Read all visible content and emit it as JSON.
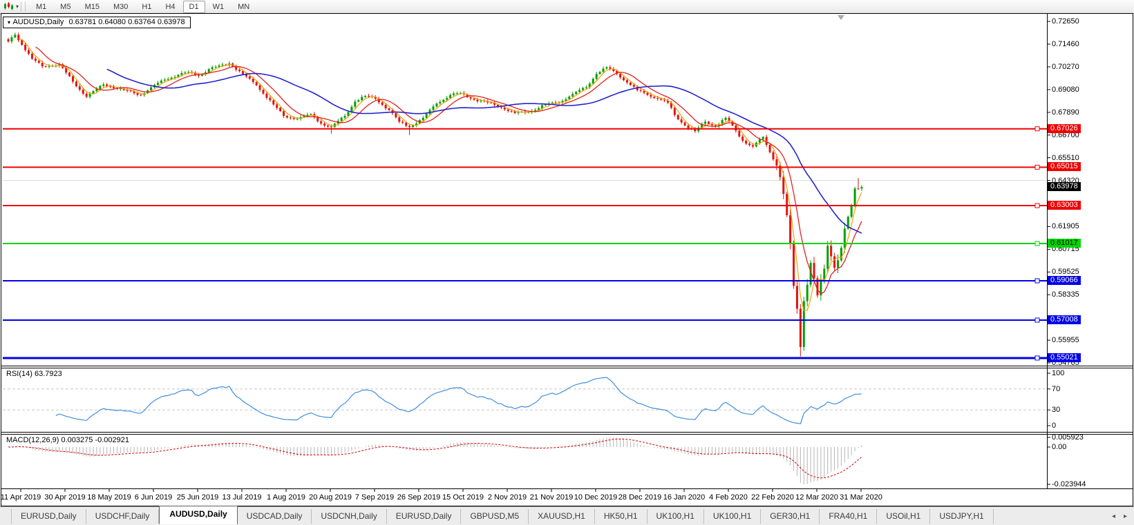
{
  "toolbar": {
    "chart_type_icon": "candlestick-chart-icon",
    "dropdown_icon": "caret-down-icon",
    "timeframes": [
      "M1",
      "M5",
      "M15",
      "M30",
      "H1",
      "H4",
      "D1",
      "W1",
      "MN"
    ],
    "active_timeframe": "D1"
  },
  "chart": {
    "title": {
      "marker": "▾",
      "symbol": "AUDUSD,Daily",
      "ohlc": "0.63781 0.64080 0.63764 0.63978"
    },
    "current_price_label": "0.63978",
    "current_price": 0.63978
  },
  "chart_data": {
    "type": "candlestick",
    "symbol": "AUDUSD",
    "timeframe": "Daily",
    "last_bar_ohlc": {
      "open": "0.63781",
      "high": "0.64080",
      "low": "0.63764",
      "close": "0.63978"
    },
    "ylim": [
      0.54622,
      0.73122
    ],
    "y_ticks": [
      "0.72650",
      "0.71460",
      "0.70270",
      "0.69080",
      "0.67890",
      "0.66700",
      "0.65510",
      "0.64320",
      "0.61905",
      "0.60715",
      "0.59525",
      "0.58335",
      "0.55955",
      "0.54765"
    ],
    "faint_gridline_price": 0.6432,
    "num_candles": 252,
    "close_anchors": [
      [
        0,
        0.716
      ],
      [
        2,
        0.7195
      ],
      [
        7,
        0.707
      ],
      [
        10,
        0.703
      ],
      [
        15,
        0.704
      ],
      [
        19,
        0.695
      ],
      [
        23,
        0.687
      ],
      [
        28,
        0.6935
      ],
      [
        34,
        0.6905
      ],
      [
        39,
        0.688
      ],
      [
        42,
        0.692
      ],
      [
        46,
        0.696
      ],
      [
        50,
        0.6985
      ],
      [
        53,
        0.7
      ],
      [
        56,
        0.698
      ],
      [
        59,
        0.7015
      ],
      [
        65,
        0.7045
      ],
      [
        69,
        0.699
      ],
      [
        73,
        0.693
      ],
      [
        78,
        0.683
      ],
      [
        81,
        0.677
      ],
      [
        85,
        0.6755
      ],
      [
        89,
        0.678
      ],
      [
        92,
        0.673
      ],
      [
        95,
        0.6712
      ],
      [
        99,
        0.677
      ],
      [
        102,
        0.6845
      ],
      [
        105,
        0.6875
      ],
      [
        108,
        0.686
      ],
      [
        112,
        0.68
      ],
      [
        115,
        0.674
      ],
      [
        118,
        0.6712
      ],
      [
        122,
        0.676
      ],
      [
        126,
        0.6835
      ],
      [
        130,
        0.688
      ],
      [
        133,
        0.689
      ],
      [
        137,
        0.6855
      ],
      [
        141,
        0.684
      ],
      [
        145,
        0.6815
      ],
      [
        149,
        0.6785
      ],
      [
        153,
        0.679
      ],
      [
        158,
        0.683
      ],
      [
        162,
        0.684
      ],
      [
        166,
        0.6885
      ],
      [
        170,
        0.692
      ],
      [
        173,
        0.699
      ],
      [
        176,
        0.7025
      ],
      [
        179,
        0.699
      ],
      [
        182,
        0.6945
      ],
      [
        185,
        0.6905
      ],
      [
        188,
        0.688
      ],
      [
        191,
        0.686
      ],
      [
        194,
        0.684
      ],
      [
        196,
        0.6775
      ],
      [
        199,
        0.672
      ],
      [
        202,
        0.669
      ],
      [
        205,
        0.674
      ],
      [
        208,
        0.6715
      ],
      [
        211,
        0.676
      ],
      [
        213,
        0.672
      ],
      [
        216,
        0.664
      ],
      [
        219,
        0.661
      ],
      [
        222,
        0.666
      ],
      [
        224,
        0.658
      ],
      [
        226,
        0.651
      ],
      [
        227,
        0.645
      ],
      [
        229,
        0.625
      ],
      [
        230,
        0.61
      ],
      [
        231,
        0.588
      ],
      [
        232,
        0.576
      ],
      [
        233,
        0.556
      ],
      [
        234,
        0.58
      ],
      [
        236,
        0.6
      ],
      [
        237,
        0.592
      ],
      [
        238,
        0.583
      ],
      [
        240,
        0.597
      ],
      [
        241,
        0.609
      ],
      [
        242,
        0.6035
      ],
      [
        243,
        0.5975
      ],
      [
        245,
        0.608
      ],
      [
        246,
        0.618
      ],
      [
        248,
        0.63
      ],
      [
        249,
        0.639
      ],
      [
        251,
        0.63978
      ]
    ],
    "wick_lows": {
      "95": 0.6677,
      "118": 0.667,
      "233": 0.551,
      "251": 0.63764
    },
    "wick_highs": {
      "2": 0.7206,
      "250": 0.6445,
      "251": 0.6408
    },
    "up_color": "#00A000",
    "down_color": "#E31212",
    "moving_averages": [
      {
        "period": 4,
        "color": "#F2A200",
        "width": 1.2
      },
      {
        "period": 9,
        "color": "#E02020",
        "width": 1.3
      },
      {
        "period": 30,
        "color": "#2323CC",
        "width": 1.6
      }
    ],
    "horizontal_lines": [
      {
        "price": 0.67026,
        "label": "0.67026",
        "color": "#EE0000",
        "text_color": "#FFFFFF",
        "width": 2
      },
      {
        "price": 0.65015,
        "label": "0.65015",
        "color": "#EE0000",
        "text_color": "#FFFFFF",
        "width": 2
      },
      {
        "price": 0.63003,
        "label": "0.63003",
        "color": "#EE0000",
        "text_color": "#FFFFFF",
        "width": 2
      },
      {
        "price": 0.61017,
        "label": "0.61017",
        "color": "#00D400",
        "text_color": "#000000",
        "width": 2
      },
      {
        "price": 0.59066,
        "label": "0.59066",
        "color": "#0000E6",
        "text_color": "#FFFFFF",
        "width": 2
      },
      {
        "price": 0.57008,
        "label": "0.57008",
        "color": "#0000E6",
        "text_color": "#FFFFFF",
        "width": 2
      },
      {
        "price": 0.55021,
        "label": "0.55021",
        "color": "#0000E6",
        "text_color": "#FFFFFF",
        "width": 3
      }
    ],
    "x_dates": [
      "11 Apr 2019",
      "30 Apr 2019",
      "18 May 2019",
      "6 Jun 2019",
      "25 Jun 2019",
      "13 Jul 2019",
      "1 Aug 2019",
      "20 Aug 2019",
      "7 Sep 2019",
      "26 Sep 2019",
      "15 Oct 2019",
      "2 Nov 2019",
      "21 Nov 2019",
      "10 Dec 2019",
      "28 Dec 2019",
      "16 Jan 2020",
      "4 Feb 2020",
      "22 Feb 2020",
      "12 Mar 2020",
      "31 Mar 2020"
    ],
    "rsi": {
      "label": "RSI(14)",
      "value": "63.7923",
      "period": 14,
      "levels": [
        70,
        30
      ],
      "axis_ticks": [
        "100",
        "70",
        "30",
        "0"
      ],
      "line_color": "#3E8EDE"
    },
    "macd": {
      "label": "MACD(12,26,9)",
      "value": "0.003275 -0.002921",
      "fast": 12,
      "slow": 26,
      "signal": 9,
      "axis_ticks": [
        "0.005923",
        "0.00",
        "-0.023944"
      ],
      "bar_color": "#B4B4B4",
      "signal_color": "#D40000"
    }
  },
  "tabs": {
    "items": [
      "EURUSD,Daily",
      "USDCHF,Daily",
      "AUDUSD,Daily",
      "USDCAD,Daily",
      "USDCNH,Daily",
      "EURUSD,Daily",
      "GBPUSD,M5",
      "XAUUSD,H1",
      "HK50,H1",
      "UK100,H1",
      "UK100,H1",
      "GER30,H1",
      "FRA40,H1",
      "USOil,H1",
      "USDJPY,H1"
    ],
    "active_index": 2,
    "scroll_left_icon": "◂",
    "scroll_right_icon": "▸"
  }
}
